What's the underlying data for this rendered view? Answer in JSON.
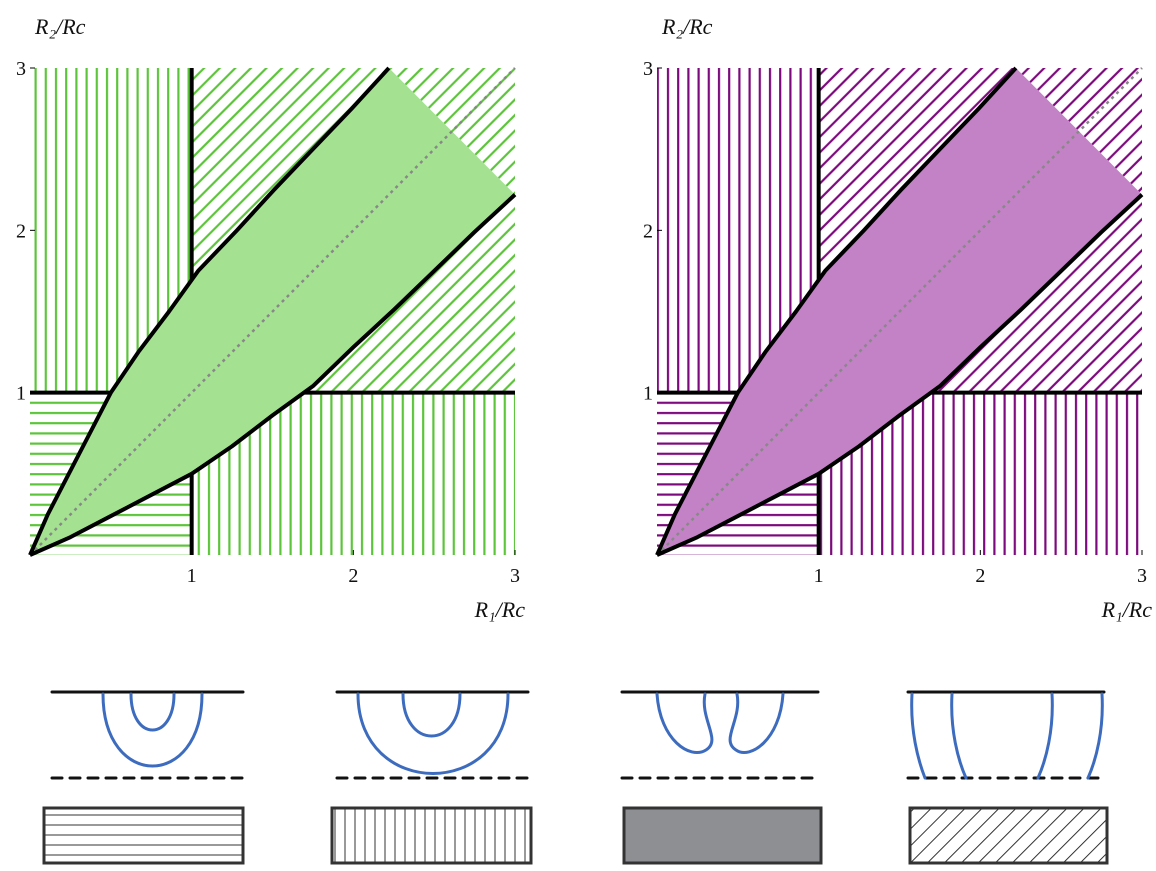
{
  "chart_data": [
    {
      "type": "phase",
      "xlabel": "R₁/Rc",
      "ylabel": "R₂/Rc",
      "xlim": [
        0,
        3
      ],
      "ylim": [
        0,
        3
      ],
      "xticks": [
        1,
        2,
        3
      ],
      "yticks": [
        1,
        2,
        3
      ],
      "critical": 1,
      "hatch_color": "#5cc43a",
      "band_color": "#a4e292",
      "curves": [
        {
          "x": [
            0,
            0.25,
            0.5,
            0.75,
            1,
            1.25,
            1.5,
            1.75,
            2,
            2.25,
            2.5,
            2.75,
            3
          ],
          "y": [
            0,
            0.11,
            0.24,
            0.37,
            0.5,
            0.67,
            0.86,
            1.04,
            1.28,
            1.51,
            1.75,
            1.99,
            2.22
          ]
        },
        {
          "x": [
            0,
            0.11,
            0.24,
            0.37,
            0.5,
            0.67,
            0.86,
            1.04,
            1.28,
            1.51,
            1.75,
            1.99,
            2.22
          ],
          "y": [
            0,
            0.25,
            0.5,
            0.75,
            1,
            1.25,
            1.5,
            1.75,
            2,
            2.25,
            2.5,
            2.75,
            3
          ]
        }
      ]
    },
    {
      "type": "phase",
      "xlabel": "R₁/Rc",
      "ylabel": "R₂/Rc",
      "xlim": [
        0,
        3
      ],
      "ylim": [
        0,
        3
      ],
      "xticks": [
        1,
        2,
        3
      ],
      "yticks": [
        1,
        2,
        3
      ],
      "critical": 1,
      "hatch_color": "#7d0a7d",
      "band_color": "#c382c6",
      "curves": [
        {
          "x": [
            0,
            0.25,
            0.5,
            0.75,
            1,
            1.25,
            1.5,
            1.75,
            2,
            2.25,
            2.5,
            2.75,
            3
          ],
          "y": [
            0,
            0.11,
            0.24,
            0.37,
            0.5,
            0.67,
            0.86,
            1.04,
            1.28,
            1.51,
            1.75,
            1.99,
            2.22
          ]
        },
        {
          "x": [
            0,
            0.11,
            0.24,
            0.37,
            0.5,
            0.67,
            0.86,
            1.04,
            1.28,
            1.51,
            1.75,
            1.99,
            2.22
          ],
          "y": [
            0,
            0.25,
            0.5,
            0.75,
            1,
            1.25,
            1.5,
            1.75,
            2,
            2.25,
            2.5,
            2.75,
            3
          ]
        }
      ]
    }
  ]
}
